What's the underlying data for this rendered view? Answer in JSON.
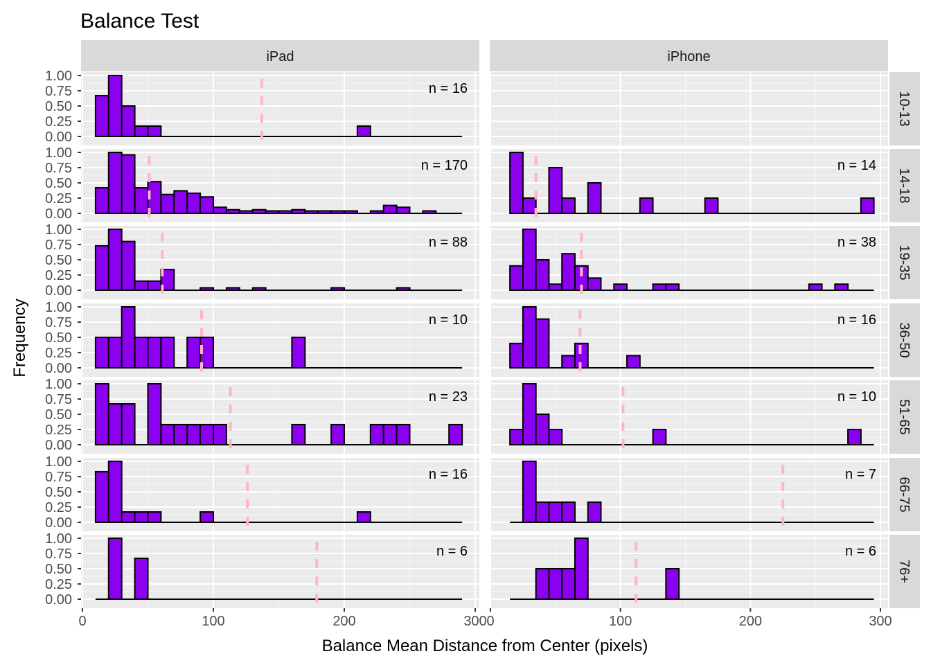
{
  "chart_data": {
    "type": "bar",
    "title": "Balance Test",
    "xlabel": "Balance Mean Distance from Center (pixels)",
    "ylabel": "Frequency",
    "columns": [
      "iPad",
      "iPhone"
    ],
    "rows": [
      "10-13",
      "14-18",
      "19-35",
      "36-50",
      "51-65",
      "66-75",
      "76+"
    ],
    "xlim": [
      0,
      300
    ],
    "ylim": [
      0,
      1
    ],
    "x_ticks": [
      0,
      100,
      200,
      300
    ],
    "y_ticks": [
      "0.00",
      "0.25",
      "0.50",
      "0.75",
      "1.00"
    ],
    "bin_width": 10,
    "bin_start": 10,
    "bar_color": "#8B00EE",
    "mean_line_color": "#FFB6C1",
    "panels": [
      {
        "col": 0,
        "row": 0,
        "n_label": "n = 16",
        "mean": 137,
        "range": [
          10,
          290
        ],
        "bars": [
          [
            10,
            0.67
          ],
          [
            20,
            1.0
          ],
          [
            30,
            0.5
          ],
          [
            40,
            0.17
          ],
          [
            50,
            0.17
          ],
          [
            210,
            0.17
          ]
        ]
      },
      {
        "col": 1,
        "row": 0,
        "n_label": "",
        "mean": null,
        "range": null,
        "bars": []
      },
      {
        "col": 0,
        "row": 1,
        "n_label": "n = 170",
        "mean": 51,
        "range": [
          10,
          290
        ],
        "bars": [
          [
            10,
            0.42
          ],
          [
            20,
            1.0
          ],
          [
            30,
            0.96
          ],
          [
            40,
            0.42
          ],
          [
            50,
            0.52
          ],
          [
            60,
            0.31
          ],
          [
            70,
            0.37
          ],
          [
            80,
            0.33
          ],
          [
            90,
            0.27
          ],
          [
            100,
            0.1
          ],
          [
            110,
            0.06
          ],
          [
            120,
            0.04
          ],
          [
            130,
            0.06
          ],
          [
            140,
            0.04
          ],
          [
            150,
            0.04
          ],
          [
            160,
            0.06
          ],
          [
            170,
            0.04
          ],
          [
            180,
            0.04
          ],
          [
            190,
            0.04
          ],
          [
            200,
            0.04
          ],
          [
            220,
            0.04
          ],
          [
            230,
            0.13
          ],
          [
            240,
            0.1
          ],
          [
            260,
            0.04
          ]
        ]
      },
      {
        "col": 1,
        "row": 1,
        "n_label": "n = 14",
        "mean": 35,
        "range": [
          15,
          295
        ],
        "bars": [
          [
            15,
            1.0
          ],
          [
            25,
            0.25
          ],
          [
            45,
            0.75
          ],
          [
            55,
            0.25
          ],
          [
            75,
            0.5
          ],
          [
            115,
            0.25
          ],
          [
            165,
            0.25
          ],
          [
            285,
            0.25
          ]
        ]
      },
      {
        "col": 0,
        "row": 2,
        "n_label": "n = 88",
        "mean": 61,
        "range": [
          10,
          290
        ],
        "bars": [
          [
            10,
            0.73
          ],
          [
            20,
            1.0
          ],
          [
            30,
            0.8
          ],
          [
            40,
            0.15
          ],
          [
            50,
            0.15
          ],
          [
            60,
            0.34
          ],
          [
            90,
            0.04
          ],
          [
            110,
            0.04
          ],
          [
            130,
            0.04
          ],
          [
            190,
            0.04
          ],
          [
            240,
            0.04
          ]
        ]
      },
      {
        "col": 1,
        "row": 2,
        "n_label": "n = 38",
        "mean": 70,
        "range": [
          15,
          295
        ],
        "bars": [
          [
            15,
            0.4
          ],
          [
            25,
            1.0
          ],
          [
            35,
            0.5
          ],
          [
            45,
            0.1
          ],
          [
            55,
            0.6
          ],
          [
            65,
            0.4
          ],
          [
            75,
            0.2
          ],
          [
            95,
            0.1
          ],
          [
            125,
            0.1
          ],
          [
            135,
            0.1
          ],
          [
            245,
            0.1
          ],
          [
            265,
            0.1
          ]
        ]
      },
      {
        "col": 0,
        "row": 3,
        "n_label": "n = 10",
        "mean": 91,
        "range": [
          10,
          290
        ],
        "bars": [
          [
            10,
            0.5
          ],
          [
            20,
            0.5
          ],
          [
            30,
            1.0
          ],
          [
            40,
            0.5
          ],
          [
            50,
            0.5
          ],
          [
            60,
            0.5
          ],
          [
            80,
            0.5
          ],
          [
            90,
            0.5
          ],
          [
            160,
            0.5
          ]
        ]
      },
      {
        "col": 1,
        "row": 3,
        "n_label": "n = 16",
        "mean": 69,
        "range": [
          15,
          295
        ],
        "bars": [
          [
            15,
            0.4
          ],
          [
            25,
            1.0
          ],
          [
            35,
            0.8
          ],
          [
            55,
            0.2
          ],
          [
            65,
            0.4
          ],
          [
            105,
            0.2
          ]
        ]
      },
      {
        "col": 0,
        "row": 4,
        "n_label": "n = 23",
        "mean": 113,
        "range": [
          10,
          290
        ],
        "bars": [
          [
            10,
            1.0
          ],
          [
            20,
            0.67
          ],
          [
            30,
            0.67
          ],
          [
            50,
            1.0
          ],
          [
            60,
            0.33
          ],
          [
            70,
            0.33
          ],
          [
            80,
            0.33
          ],
          [
            90,
            0.33
          ],
          [
            100,
            0.33
          ],
          [
            160,
            0.33
          ],
          [
            190,
            0.33
          ],
          [
            220,
            0.33
          ],
          [
            230,
            0.33
          ],
          [
            240,
            0.33
          ],
          [
            280,
            0.33
          ]
        ]
      },
      {
        "col": 1,
        "row": 4,
        "n_label": "n = 10",
        "mean": 102,
        "range": [
          15,
          295
        ],
        "bars": [
          [
            15,
            0.25
          ],
          [
            25,
            1.0
          ],
          [
            35,
            0.5
          ],
          [
            45,
            0.25
          ],
          [
            125,
            0.25
          ],
          [
            275,
            0.25
          ]
        ]
      },
      {
        "col": 0,
        "row": 5,
        "n_label": "n = 16",
        "mean": 126,
        "range": [
          10,
          290
        ],
        "bars": [
          [
            10,
            0.83
          ],
          [
            20,
            1.0
          ],
          [
            30,
            0.17
          ],
          [
            40,
            0.17
          ],
          [
            50,
            0.17
          ],
          [
            90,
            0.17
          ],
          [
            210,
            0.17
          ]
        ]
      },
      {
        "col": 1,
        "row": 5,
        "n_label": "n = 7",
        "mean": 225,
        "range": [
          15,
          295
        ],
        "bars": [
          [
            25,
            1.0
          ],
          [
            35,
            0.33
          ],
          [
            45,
            0.33
          ],
          [
            55,
            0.33
          ],
          [
            75,
            0.33
          ]
        ]
      },
      {
        "col": 0,
        "row": 6,
        "n_label": "n = 6",
        "mean": 179,
        "range": [
          10,
          290
        ],
        "bars": [
          [
            20,
            1.0
          ],
          [
            40,
            0.67
          ]
        ]
      },
      {
        "col": 1,
        "row": 6,
        "n_label": "n = 6",
        "mean": 112,
        "range": [
          15,
          295
        ],
        "bars": [
          [
            35,
            0.5
          ],
          [
            45,
            0.5
          ],
          [
            55,
            0.5
          ],
          [
            65,
            1.0
          ],
          [
            135,
            0.5
          ]
        ]
      }
    ]
  }
}
